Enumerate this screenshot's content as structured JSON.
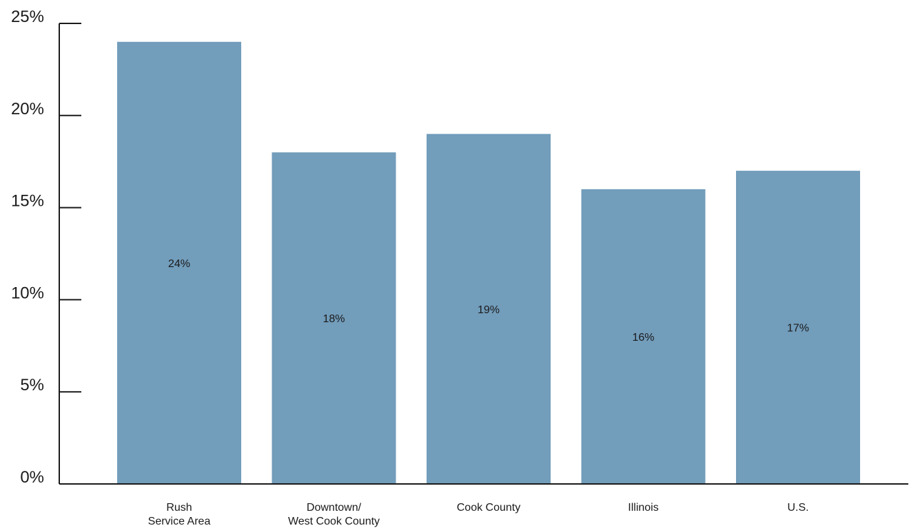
{
  "chart_data": {
    "type": "bar",
    "title": "",
    "xlabel": "",
    "ylabel": "",
    "categories": [
      [
        "Rush",
        "Service Area"
      ],
      [
        "Downtown/",
        "West Cook County"
      ],
      [
        "Cook County"
      ],
      [
        "Illinois"
      ],
      [
        "U.S."
      ]
    ],
    "values": [
      24,
      18,
      19,
      16,
      17
    ],
    "data_labels": [
      "24%",
      "18%",
      "19%",
      "16%",
      "17%"
    ],
    "ylim": [
      0,
      25
    ],
    "yticks": [
      0,
      5,
      10,
      15,
      20,
      25
    ],
    "ytick_labels": [
      "0%",
      "5%",
      "10%",
      "15%",
      "20%",
      "25%"
    ],
    "grid": false,
    "legend": "none",
    "colors": {
      "bar": "#729dbb",
      "axis": "#1a1a1a",
      "text": "#1a1a1a"
    }
  }
}
